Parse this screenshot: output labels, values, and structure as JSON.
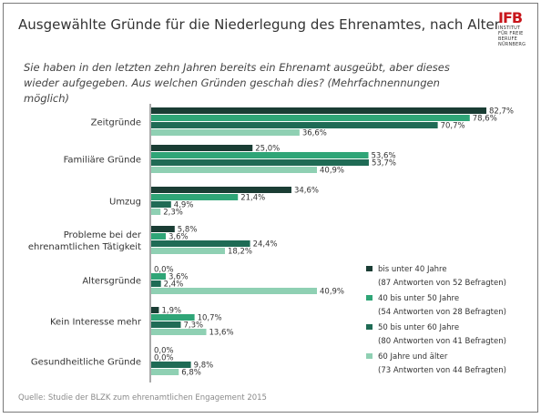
{
  "header": {
    "title": "Ausgewählte Gründe für die Niederlegung des Ehrenamtes, nach Alter",
    "subtitle": "Sie haben in den letzten zehn Jahren bereits ein Ehrenamt ausgeübt, aber dieses wieder aufgegeben. Aus welchen Gründen geschah dies? (Mehrfachnennungen möglich)",
    "source": "Quelle: Studie der BLZK zum ehrenamtlichen Engagement 2015"
  },
  "logo": {
    "text": "IFB",
    "lines": [
      "INSTITUT",
      "FÜR FREIE",
      "BERUFE",
      "NÜRNBERG"
    ]
  },
  "chart_data": {
    "type": "bar",
    "orientation": "horizontal",
    "categories": [
      [
        "Zeitgründe"
      ],
      [
        "Familiäre Gründe"
      ],
      [
        "Umzug"
      ],
      [
        "Probleme bei der",
        "ehrenamtlichen Tätigkeit"
      ],
      [
        "Altersgründe"
      ],
      [
        "Kein Interesse mehr"
      ],
      [
        "Gesundheitliche Gründe"
      ]
    ],
    "series": [
      {
        "name": "bis unter 40 Jahre",
        "note": "(87 Antworten von 52 Befragten)",
        "color": "#1a3d34",
        "values": [
          82.7,
          25.0,
          34.6,
          5.8,
          0.0,
          1.9,
          0.0
        ],
        "labels": [
          "82,7%",
          "25,0%",
          "34,6%",
          "5,8%",
          "0,0%",
          "1,9%",
          "0,0%"
        ]
      },
      {
        "name": "40 bis unter 50 Jahre",
        "note": "(54 Antworten von 28 Befragten)",
        "color": "#2fa577",
        "values": [
          78.6,
          53.6,
          21.4,
          3.6,
          3.6,
          10.7,
          0.0
        ],
        "labels": [
          "78,6%",
          "53,6%",
          "21,4%",
          "3,6%",
          "3,6%",
          "10,7%",
          "0,0%"
        ]
      },
      {
        "name": "50 bis unter 60 Jahre",
        "note": "(80 Antworten von 41 Befragten)",
        "color": "#1f6b55",
        "values": [
          70.7,
          53.7,
          4.9,
          24.4,
          2.4,
          7.3,
          9.8
        ],
        "labels": [
          "70,7%",
          "53,7%",
          "4,9%",
          "24,4%",
          "2,4%",
          "7,3%",
          "9,8%"
        ]
      },
      {
        "name": "60 Jahre und älter",
        "note": "(73 Antworten von 44 Befragten)",
        "color": "#8fd0b3",
        "values": [
          36.6,
          40.9,
          2.3,
          18.2,
          40.9,
          13.6,
          6.8
        ],
        "labels": [
          "36,6%",
          "40,9%",
          "2,3%",
          "18,2%",
          "40,9%",
          "13,6%",
          "6,8%"
        ]
      }
    ],
    "unit": "%",
    "xlim": [
      0,
      100
    ],
    "legend_position": "right"
  }
}
